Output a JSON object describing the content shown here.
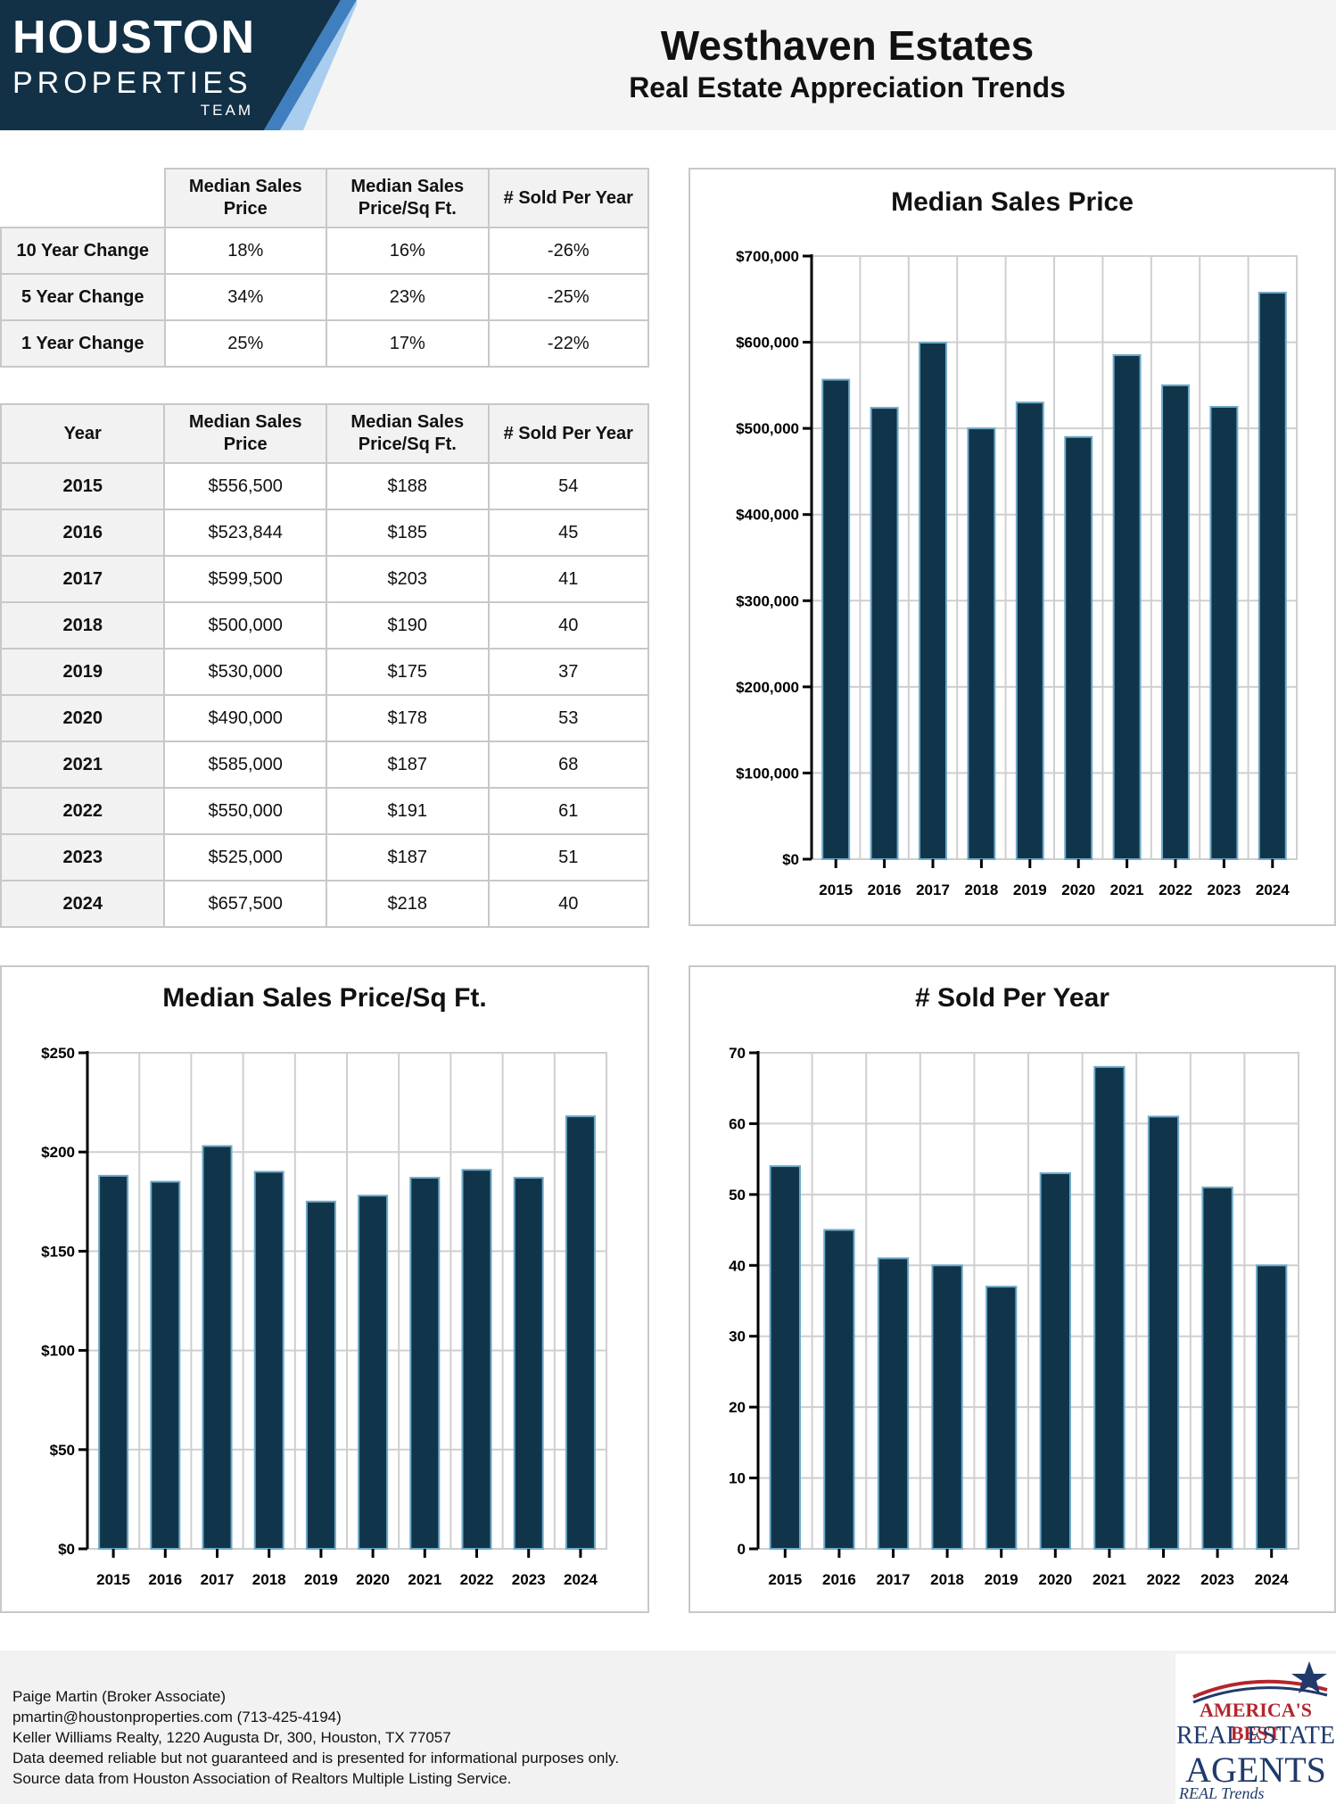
{
  "logo": {
    "line1": "HOUSTON",
    "line2": "PROPERTIES",
    "line3": "TEAM"
  },
  "header": {
    "title": "Westhaven Estates",
    "subtitle": "Real Estate Appreciation Trends"
  },
  "change_table": {
    "headers": [
      "",
      "Median Sales Price",
      "Median Sales Price/Sq Ft.",
      "# Sold Per Year"
    ],
    "rows": [
      {
        "label": "10 Year Change",
        "price": "18%",
        "sqft": "16%",
        "sold": "-26%"
      },
      {
        "label": "5 Year Change",
        "price": "34%",
        "sqft": "23%",
        "sold": "-25%"
      },
      {
        "label": "1 Year Change",
        "price": "25%",
        "sqft": "17%",
        "sold": "-22%"
      }
    ]
  },
  "year_table": {
    "headers": [
      "Year",
      "Median Sales Price",
      "Median Sales Price/Sq Ft.",
      "# Sold Per Year"
    ],
    "rows": [
      {
        "year": "2015",
        "price": "$556,500",
        "sqft": "$188",
        "sold": "54"
      },
      {
        "year": "2016",
        "price": "$523,844",
        "sqft": "$185",
        "sold": "45"
      },
      {
        "year": "2017",
        "price": "$599,500",
        "sqft": "$203",
        "sold": "41"
      },
      {
        "year": "2018",
        "price": "$500,000",
        "sqft": "$190",
        "sold": "40"
      },
      {
        "year": "2019",
        "price": "$530,000",
        "sqft": "$175",
        "sold": "37"
      },
      {
        "year": "2020",
        "price": "$490,000",
        "sqft": "$178",
        "sold": "53"
      },
      {
        "year": "2021",
        "price": "$585,000",
        "sqft": "$187",
        "sold": "68"
      },
      {
        "year": "2022",
        "price": "$550,000",
        "sqft": "$191",
        "sold": "61"
      },
      {
        "year": "2023",
        "price": "$525,000",
        "sqft": "$187",
        "sold": "51"
      },
      {
        "year": "2024",
        "price": "$657,500",
        "sqft": "$218",
        "sold": "40"
      }
    ]
  },
  "chart_data": [
    {
      "type": "bar",
      "title": "Median Sales Price",
      "categories": [
        "2015",
        "2016",
        "2017",
        "2018",
        "2019",
        "2020",
        "2021",
        "2022",
        "2023",
        "2024"
      ],
      "values": [
        556500,
        523844,
        599500,
        500000,
        530000,
        490000,
        585000,
        550000,
        525000,
        657500
      ],
      "ylim": [
        0,
        700000
      ],
      "yticks": [
        0,
        100000,
        200000,
        300000,
        400000,
        500000,
        600000,
        700000
      ],
      "ytick_labels": [
        "$0",
        "$100,000",
        "$200,000",
        "$300,000",
        "$400,000",
        "$500,000",
        "$600,000",
        "$700,000"
      ],
      "grid": true,
      "bar_color": "#10354b",
      "bar_edge": "#6fa9c7"
    },
    {
      "type": "bar",
      "title": "Median Sales Price/Sq Ft.",
      "categories": [
        "2015",
        "2016",
        "2017",
        "2018",
        "2019",
        "2020",
        "2021",
        "2022",
        "2023",
        "2024"
      ],
      "values": [
        188,
        185,
        203,
        190,
        175,
        178,
        187,
        191,
        187,
        218
      ],
      "ylim": [
        0,
        250
      ],
      "yticks": [
        0,
        50,
        100,
        150,
        200,
        250
      ],
      "ytick_labels": [
        "$0",
        "$50",
        "$100",
        "$150",
        "$200",
        "$250"
      ],
      "grid": true,
      "bar_color": "#10354b",
      "bar_edge": "#6fa9c7"
    },
    {
      "type": "bar",
      "title": "# Sold Per Year",
      "categories": [
        "2015",
        "2016",
        "2017",
        "2018",
        "2019",
        "2020",
        "2021",
        "2022",
        "2023",
        "2024"
      ],
      "values": [
        54,
        45,
        41,
        40,
        37,
        53,
        68,
        61,
        51,
        40
      ],
      "ylim": [
        0,
        70
      ],
      "yticks": [
        0,
        10,
        20,
        30,
        40,
        50,
        60,
        70
      ],
      "ytick_labels": [
        "0",
        "10",
        "20",
        "30",
        "40",
        "50",
        "60",
        "70"
      ],
      "grid": true,
      "bar_color": "#10354b",
      "bar_edge": "#6fa9c7"
    }
  ],
  "footer": {
    "line1": "Paige Martin (Broker Associate)",
    "line2": "pmartin@houstonproperties.com (713-425-4194)",
    "line3": "Keller Williams Realty, 1220 Augusta Dr, 300, Houston, TX 77057",
    "line4": "Data deemed reliable but not guaranteed and is presented for informational purposes only.",
    "line5": "Source data from Houston Association of Realtors Multiple Listing Service."
  },
  "badge": {
    "line1": "AMERICA'S BEST",
    "line2": "REAL ESTATE",
    "line3": "AGENTS",
    "line4": "REAL Trends"
  },
  "colors": {
    "logo_bg": "#123147",
    "logo_stripe1": "#3f7fbf",
    "logo_stripe2": "#a9cdee",
    "bar": "#10354b"
  }
}
